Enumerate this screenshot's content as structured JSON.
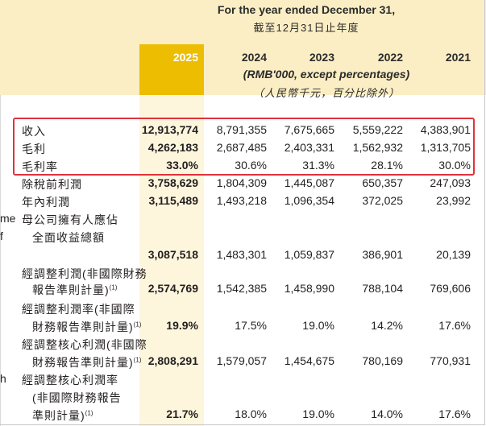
{
  "header": {
    "period_en": "For the year ended December 31,",
    "period_zh": "截至12月31日止年度",
    "years": [
      "2025",
      "2024",
      "2023",
      "2022",
      "2021"
    ],
    "unit_en": "(RMB'000, except percentages)",
    "unit_zh": "（人民幣千元，百分比除外）"
  },
  "left_cutoff": [
    "me",
    "f",
    "h"
  ],
  "rows": [
    {
      "label": "收入",
      "values": [
        "12,913,774",
        "8,791,355",
        "7,675,665",
        "5,559,222",
        "4,383,901"
      ]
    },
    {
      "label": "毛利",
      "values": [
        "4,262,183",
        "2,687,485",
        "2,403,331",
        "1,562,932",
        "1,313,705"
      ]
    },
    {
      "label": "毛利率",
      "values": [
        "33.0%",
        "30.6%",
        "31.3%",
        "28.1%",
        "30.0%"
      ]
    },
    {
      "label": "除稅前利潤",
      "values": [
        "3,758,629",
        "1,804,309",
        "1,445,087",
        "650,357",
        "247,093"
      ]
    },
    {
      "label": "年內利潤",
      "values": [
        "3,115,489",
        "1,493,218",
        "1,096,354",
        "372,025",
        "23,992"
      ]
    },
    {
      "label_lines": [
        "母公司擁有人應佔",
        "全面收益總額"
      ],
      "values": [
        "3,087,518",
        "1,483,301",
        "1,059,837",
        "386,901",
        "20,139"
      ]
    },
    {
      "label_lines": [
        "經調整利潤(非國際財務",
        "報告準則計量)"
      ],
      "note": "(1)",
      "values": [
        "2,574,769",
        "1,542,385",
        "1,458,990",
        "788,104",
        "769,606"
      ]
    },
    {
      "label_lines": [
        "經調整利潤率(非國際",
        "財務報告準則計量)"
      ],
      "note": "(1)",
      "values": [
        "19.9%",
        "17.5%",
        "19.0%",
        "14.2%",
        "17.6%"
      ]
    },
    {
      "label_lines": [
        "經調整核心利潤(非國際",
        "財務報告準則計量)"
      ],
      "note": "(1)",
      "values": [
        "2,808,291",
        "1,579,057",
        "1,454,675",
        "780,169",
        "770,931"
      ]
    },
    {
      "label_lines": [
        "經調整核心利潤率",
        "(非國際財務報告",
        "準則計量)"
      ],
      "note": "(1)",
      "values": [
        "21.7%",
        "18.0%",
        "19.0%",
        "14.0%",
        "17.6%"
      ]
    }
  ],
  "colors": {
    "highlight_header": "#ecbd00",
    "highlight_column": "#fdf6dd",
    "band": "#fbeec4",
    "annotation_box": "#e0323c"
  }
}
